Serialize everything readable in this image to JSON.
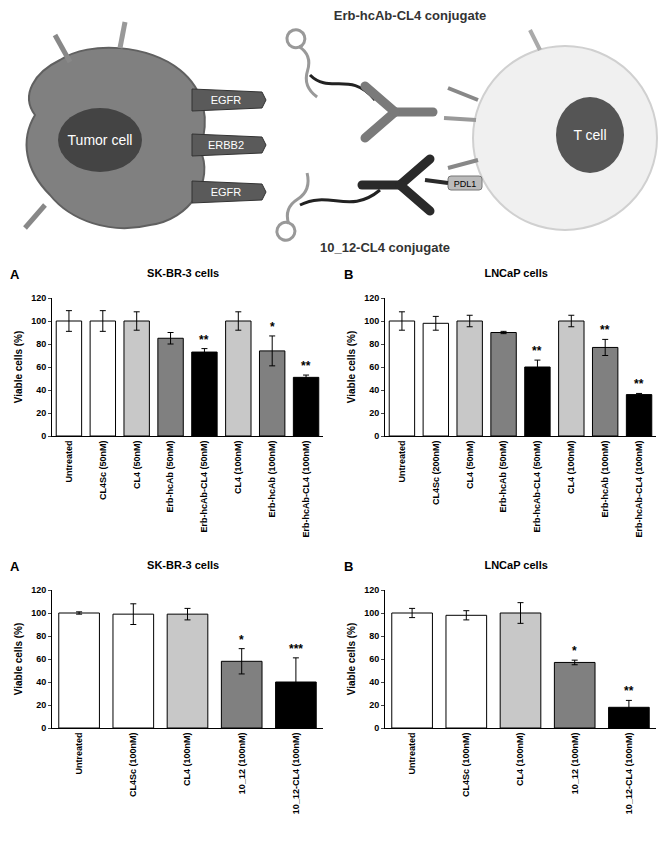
{
  "diagram": {
    "top_conjugate": "Erb-hcAb-CL4 conjugate",
    "bottom_conjugate": "10_12-CL4 conjugate",
    "tumor_cell": "Tumor cell",
    "t_cell": "T cell",
    "receptors": [
      "EGFR",
      "ERBB2",
      "EGFR"
    ],
    "t_cell_receptor": "PDL1"
  },
  "chart_data": [
    {
      "type": "bar",
      "panel": "A",
      "title": "SK-BR-3 cells",
      "y_label": "Viable cells (%)",
      "categories": [
        "Untreated",
        "CL4Sc (50nM)",
        "CL4 (50nM)",
        "Erb-hcAb (50nM)",
        "Erb-hcAb-CL4 (50nM)",
        "CL4 (100nM)",
        "Erb-hcAb (100nM)",
        "Erb-hcAb-CL4 (100nM)"
      ],
      "values": [
        100,
        100,
        100,
        85,
        73,
        100,
        74,
        51
      ],
      "errors": [
        9,
        9,
        8,
        5,
        3,
        8,
        13,
        2
      ],
      "significance": [
        null,
        null,
        null,
        null,
        "**",
        null,
        "*",
        "**"
      ],
      "colors": [
        "#ffffff",
        "#ffffff",
        "#c8c8c8",
        "#808080",
        "#000000",
        "#c8c8c8",
        "#808080",
        "#000000"
      ],
      "ylim": [
        0,
        120
      ],
      "yticks": [
        0,
        20,
        40,
        60,
        80,
        100,
        120
      ],
      "grid": false
    },
    {
      "type": "bar",
      "panel": "B",
      "title": "LNCaP cells",
      "y_label": "Viable cells (%)",
      "categories": [
        "Untreated",
        "CL4Sc (200nM)",
        "CL4 (50nM)",
        "Erb-hcAb (50nM)",
        "Erb-hcAb-CL4 (50nM)",
        "CL4 (100nM)",
        "Erb-hcAb (100nM)",
        "Erb-hcAb-CL4 (100nM)"
      ],
      "values": [
        100,
        98,
        100,
        90,
        60,
        100,
        77,
        36
      ],
      "errors": [
        8,
        6,
        5,
        1,
        6,
        5,
        7,
        1
      ],
      "significance": [
        null,
        null,
        null,
        null,
        "**",
        null,
        "**",
        "**"
      ],
      "colors": [
        "#ffffff",
        "#ffffff",
        "#c8c8c8",
        "#808080",
        "#000000",
        "#c8c8c8",
        "#808080",
        "#000000"
      ],
      "ylim": [
        0,
        120
      ],
      "yticks": [
        0,
        20,
        40,
        60,
        80,
        100,
        120
      ],
      "grid": false
    },
    {
      "type": "bar",
      "panel": "A",
      "title": "SK-BR-3 cells",
      "y_label": "Viable cells (%)",
      "categories": [
        "Untreated",
        "CL4Sc (100nM)",
        "CL4 (100nM)",
        "10_12 (100nM)",
        "10_12-CL4 (100nM)"
      ],
      "values": [
        100,
        99,
        99,
        58,
        40
      ],
      "errors": [
        1,
        9,
        5,
        11,
        21
      ],
      "significance": [
        null,
        null,
        null,
        "*",
        "***"
      ],
      "colors": [
        "#ffffff",
        "#ffffff",
        "#c8c8c8",
        "#808080",
        "#000000"
      ],
      "ylim": [
        0,
        120
      ],
      "yticks": [
        0,
        20,
        40,
        60,
        80,
        100,
        120
      ],
      "grid": false
    },
    {
      "type": "bar",
      "panel": "B",
      "title": "LNCaP cells",
      "y_label": "Viable cells (%)",
      "categories": [
        "Untreated",
        "CL4Sc (100nM)",
        "CL4 (100nM)",
        "10_12 (100nM)",
        "10_12-CL4 (100nM)"
      ],
      "values": [
        100,
        98,
        100,
        57,
        18
      ],
      "errors": [
        4,
        4,
        9,
        2,
        6
      ],
      "significance": [
        null,
        null,
        null,
        "*",
        "**"
      ],
      "colors": [
        "#ffffff",
        "#ffffff",
        "#c8c8c8",
        "#808080",
        "#000000"
      ],
      "ylim": [
        0,
        120
      ],
      "yticks": [
        0,
        20,
        40,
        60,
        80,
        100,
        120
      ],
      "grid": false
    }
  ]
}
